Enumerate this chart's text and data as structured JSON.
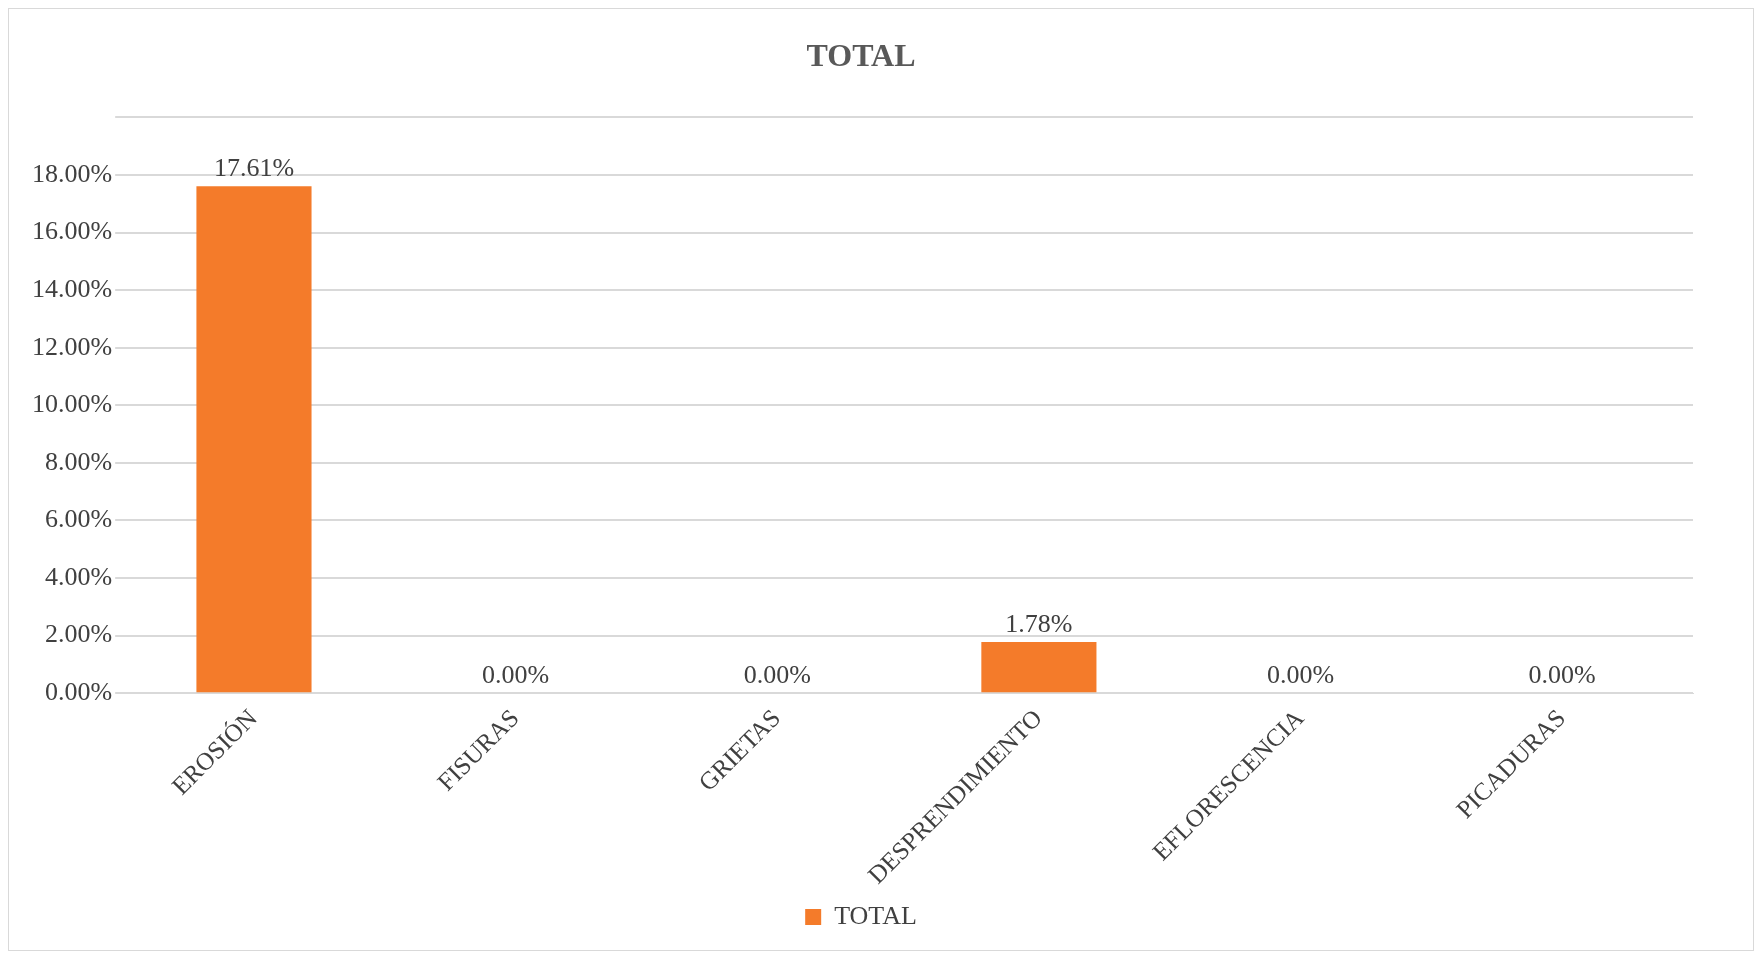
{
  "chart_data": {
    "type": "bar",
    "title": "TOTAL",
    "categories": [
      "EROSIÓN",
      "FISURAS",
      "GRIETAS",
      "DESPRENDIMIENTO",
      "EFLORESCENCIA",
      "PICADURAS"
    ],
    "series": [
      {
        "name": "TOTAL",
        "color": "#f47b2a",
        "values": [
          17.61,
          0,
          0,
          1.78,
          0,
          0
        ],
        "value_labels": [
          "17.61%",
          "0.00%",
          "0.00%",
          "1.78%",
          "0.00%",
          "0.00%"
        ]
      }
    ],
    "ylim": [
      0,
      20
    ],
    "yticks": [
      {
        "value": 0,
        "label": "0.00%"
      },
      {
        "value": 2,
        "label": "2.00%"
      },
      {
        "value": 4,
        "label": "4.00%"
      },
      {
        "value": 6,
        "label": "6.00%"
      },
      {
        "value": 8,
        "label": "8.00%"
      },
      {
        "value": 10,
        "label": "10.00%"
      },
      {
        "value": 12,
        "label": "12.00%"
      },
      {
        "value": 14,
        "label": "14.00%"
      },
      {
        "value": 16,
        "label": "16.00%"
      },
      {
        "value": 18,
        "label": "18.00%"
      },
      {
        "value": 20,
        "label": null
      }
    ],
    "grid": "y",
    "legend": "bottom"
  }
}
